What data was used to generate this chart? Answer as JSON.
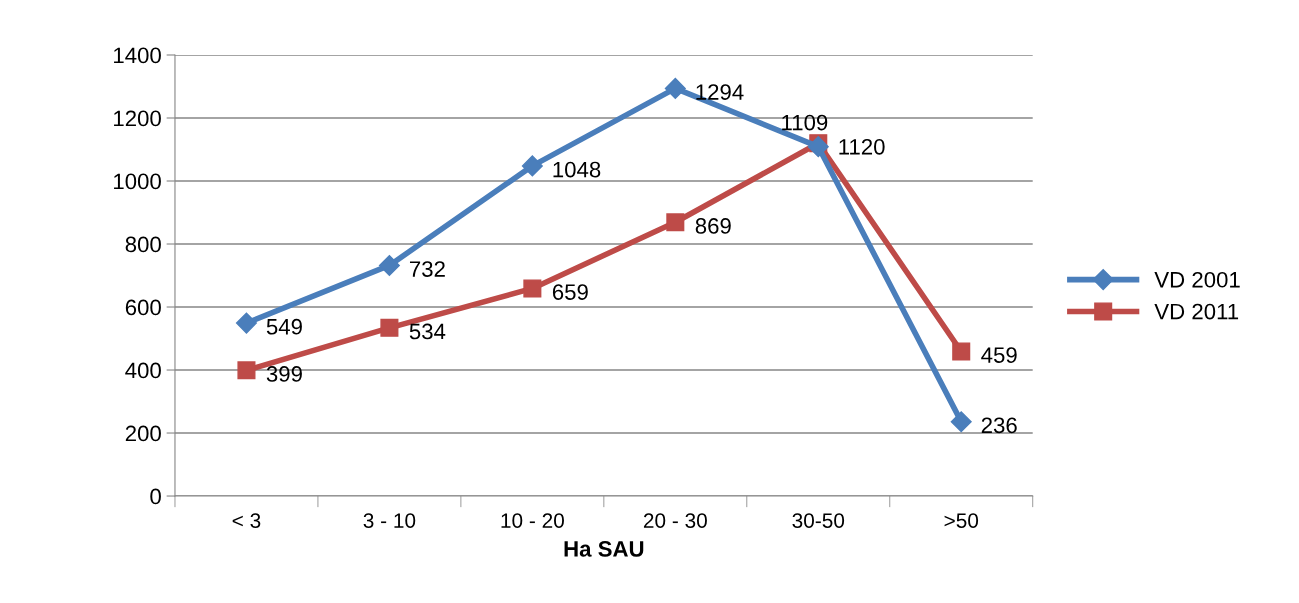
{
  "chart_data": {
    "type": "line",
    "xlabel": "Ha SAU",
    "categories": [
      "< 3",
      "3 - 10",
      "10 - 20",
      "20 - 30",
      "30-50",
      ">50"
    ],
    "series": [
      {
        "name": "VD 2001",
        "color": "#4a7ebb",
        "marker": "diamond",
        "values": [
          549,
          732,
          1048,
          1294,
          1109,
          236
        ]
      },
      {
        "name": "VD 2011",
        "color": "#be4b48",
        "marker": "square",
        "values": [
          399,
          534,
          659,
          869,
          1120,
          459
        ]
      }
    ],
    "ylim": [
      0,
      1400
    ],
    "yticks": [
      0,
      200,
      400,
      600,
      800,
      1000,
      1200,
      1400
    ],
    "grid": "y",
    "legend": "right",
    "data_labels": true,
    "line_style": "solid"
  }
}
